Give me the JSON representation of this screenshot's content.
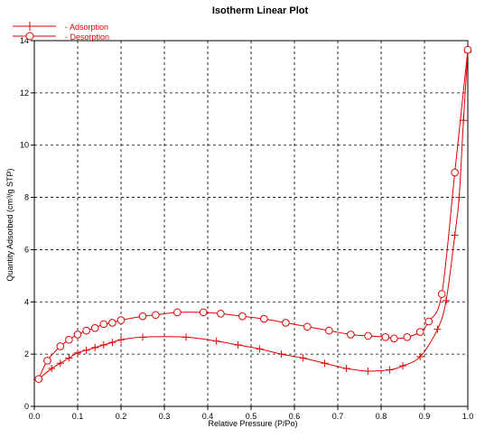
{
  "chart_data": {
    "type": "line",
    "title": "Isotherm Linear Plot",
    "xlabel": "Relative Pressure (P/Po)",
    "ylabel": "Quantity Adsorbed (cm³/g STP)",
    "xlim": [
      0,
      1
    ],
    "ylim": [
      0,
      14
    ],
    "xticks": [
      "0.0",
      "0.1",
      "0.2",
      "0.3",
      "0.4",
      "0.5",
      "0.6",
      "0.7",
      "0.8",
      "0.9",
      "1.0"
    ],
    "yticks": [
      "0",
      "2",
      "4",
      "6",
      "8",
      "10",
      "12",
      "14"
    ],
    "grid": true,
    "legend_position": "top-left",
    "series_color": "#e00000",
    "series": [
      {
        "name": "- Adsorption",
        "marker": "plus",
        "x": [
          0.01,
          0.04,
          0.06,
          0.08,
          0.1,
          0.12,
          0.14,
          0.16,
          0.18,
          0.2,
          0.25,
          0.35,
          0.42,
          0.47,
          0.52,
          0.57,
          0.62,
          0.67,
          0.72,
          0.77,
          0.82,
          0.85,
          0.89,
          0.93,
          0.95,
          0.97,
          0.98,
          0.99,
          1.0
        ],
        "y": [
          1.05,
          1.45,
          1.65,
          1.85,
          2.05,
          2.15,
          2.25,
          2.35,
          2.45,
          2.55,
          2.65,
          2.65,
          2.5,
          2.35,
          2.2,
          2.0,
          1.85,
          1.65,
          1.45,
          1.35,
          1.4,
          1.55,
          1.9,
          2.95,
          4.05,
          6.55,
          8.0,
          10.95,
          13.55
        ]
      },
      {
        "name": "- Desorption",
        "marker": "circle",
        "x": [
          1.0,
          0.97,
          0.94,
          0.91,
          0.89,
          0.86,
          0.83,
          0.81,
          0.77,
          0.73,
          0.68,
          0.63,
          0.58,
          0.53,
          0.48,
          0.43,
          0.39,
          0.33,
          0.28,
          0.25,
          0.2,
          0.18,
          0.16,
          0.14,
          0.12,
          0.1,
          0.08,
          0.06,
          0.03,
          0.01
        ],
        "y": [
          13.65,
          8.95,
          4.3,
          3.25,
          2.85,
          2.65,
          2.6,
          2.65,
          2.7,
          2.75,
          2.9,
          3.05,
          3.2,
          3.35,
          3.45,
          3.55,
          3.6,
          3.6,
          3.5,
          3.45,
          3.3,
          3.2,
          3.15,
          3.0,
          2.9,
          2.75,
          2.55,
          2.3,
          1.75,
          1.05
        ]
      }
    ]
  }
}
